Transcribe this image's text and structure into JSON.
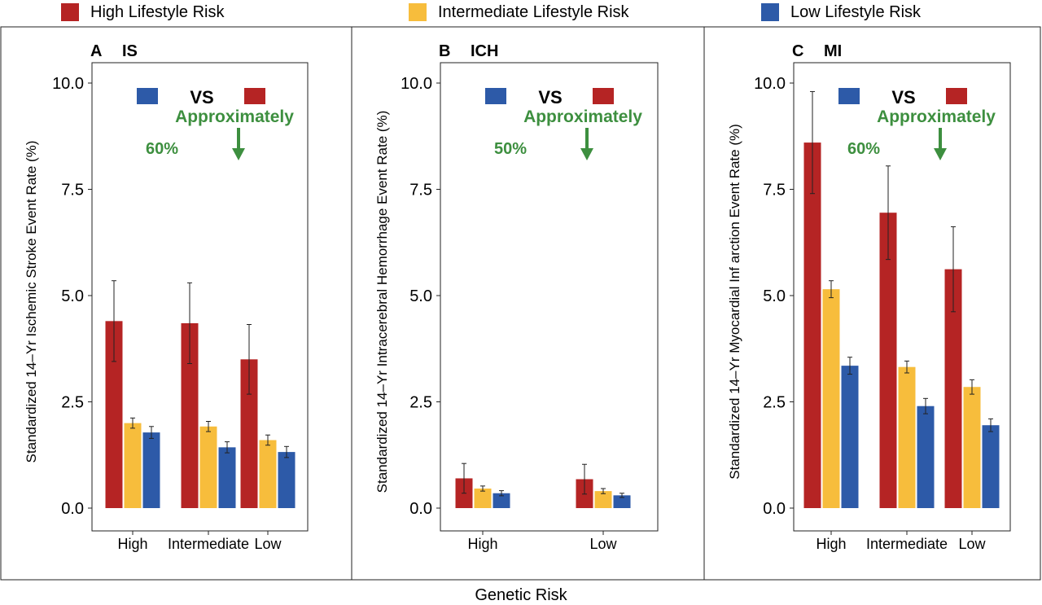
{
  "legend": {
    "items": [
      {
        "label": "High Lifestyle Risk",
        "color": "#b52424"
      },
      {
        "label": "Intermediate Lifestyle Risk",
        "color": "#f7bd3c"
      },
      {
        "label": "Low Lifestyle Risk",
        "color": "#2d5aa8"
      }
    ]
  },
  "x_label": "Genetic Risk",
  "annotation": {
    "vs_text": "VS",
    "approx_text": "Approximately",
    "arrow_color": "#3d8f3f"
  },
  "chart_data": [
    {
      "type": "bar",
      "panel_letter": "A",
      "title": "IS",
      "ylabel": "Standardized 14–Yr Ischemic Stroke Event Rate (%)",
      "ylim": [
        0,
        10
      ],
      "yticks": [
        "0.0",
        "2.5",
        "5.0",
        "7.5",
        "10.0"
      ],
      "categories": [
        "High",
        "Intermediate",
        "Low"
      ],
      "series": [
        {
          "name": "High Lifestyle Risk",
          "values": [
            4.4,
            4.35,
            3.5
          ],
          "errors": [
            0.95,
            0.95,
            0.82
          ]
        },
        {
          "name": "Intermediate Lifestyle Risk",
          "values": [
            2.0,
            1.92,
            1.6
          ],
          "errors": [
            0.12,
            0.12,
            0.12
          ]
        },
        {
          "name": "Low Lifestyle Risk",
          "values": [
            1.78,
            1.43,
            1.32
          ],
          "errors": [
            0.14,
            0.13,
            0.13
          ]
        }
      ],
      "percent_text": "60%"
    },
    {
      "type": "bar",
      "panel_letter": "B",
      "title": "ICH",
      "ylabel": "Standardized 14–Yr Intracerebral Hemorrhage Event Rate (%)",
      "ylim": [
        0,
        10
      ],
      "yticks": [
        "0.0",
        "2.5",
        "5.0",
        "7.5",
        "10.0"
      ],
      "categories": [
        "High",
        "Low"
      ],
      "series": [
        {
          "name": "High Lifestyle Risk",
          "values": [
            0.7,
            0.68
          ],
          "errors": [
            0.35,
            0.35
          ]
        },
        {
          "name": "Intermediate Lifestyle Risk",
          "values": [
            0.46,
            0.4
          ],
          "errors": [
            0.06,
            0.06
          ]
        },
        {
          "name": "Low Lifestyle Risk",
          "values": [
            0.35,
            0.3
          ],
          "errors": [
            0.06,
            0.05
          ]
        }
      ],
      "percent_text": "50%"
    },
    {
      "type": "bar",
      "panel_letter": "C",
      "title": "MI",
      "ylabel": "Standardized 14–Yr Myocardial Inf arction Event Rate (%)",
      "ylim": [
        0,
        10
      ],
      "yticks": [
        "0.0",
        "2.5",
        "5.0",
        "7.5",
        "10.0"
      ],
      "categories": [
        "High",
        "Intermediate",
        "Low"
      ],
      "series": [
        {
          "name": "High Lifestyle Risk",
          "values": [
            8.6,
            6.95,
            5.62
          ],
          "errors": [
            1.2,
            1.1,
            1.0
          ]
        },
        {
          "name": "Intermediate Lifestyle Risk",
          "values": [
            5.15,
            3.32,
            2.85
          ],
          "errors": [
            0.2,
            0.14,
            0.17
          ]
        },
        {
          "name": "Low Lifestyle Risk",
          "values": [
            3.35,
            2.4,
            1.95
          ],
          "errors": [
            0.2,
            0.18,
            0.15
          ]
        }
      ],
      "percent_text": "60%"
    }
  ]
}
